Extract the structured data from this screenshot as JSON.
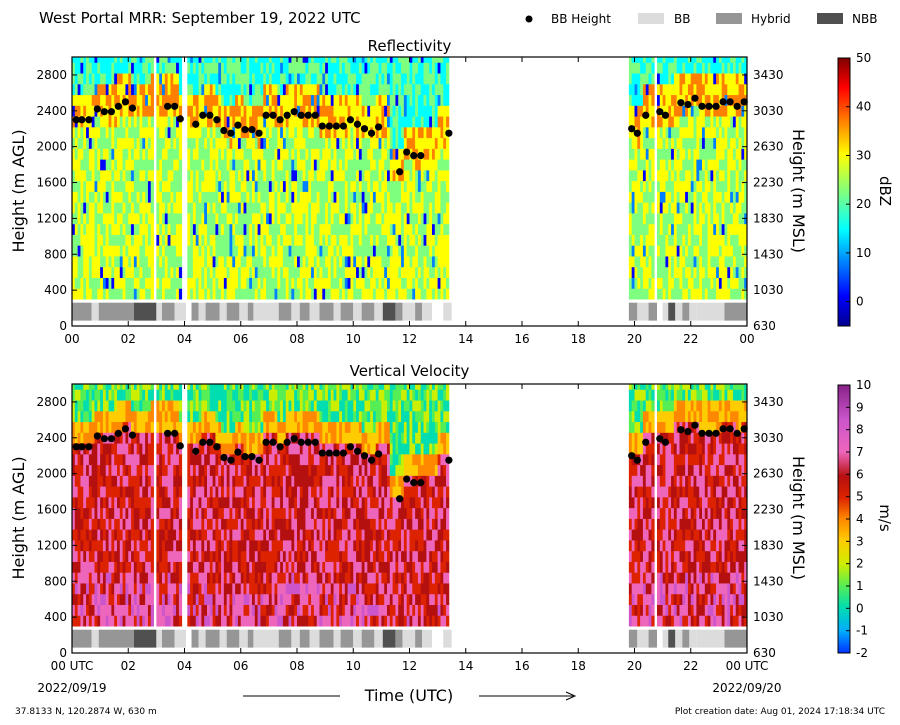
{
  "header": {
    "title": "West Portal MRR:  September 19, 2022 UTC",
    "legend": [
      {
        "label": "BB Height",
        "marker": "dot",
        "color": "#000000"
      },
      {
        "label": "BB",
        "marker": "box",
        "color": "#dcdcdc"
      },
      {
        "label": "Hybrid",
        "marker": "box",
        "color": "#969696"
      },
      {
        "label": "NBB",
        "marker": "box",
        "color": "#505050"
      }
    ]
  },
  "chart_data": [
    {
      "type": "heatmap",
      "title": "Reflectivity",
      "ylabel": "Height (m AGL)",
      "ylabel_right": "Height (m MSL)",
      "xlim": [
        0,
        24
      ],
      "ylim": [
        0,
        3000
      ],
      "x_ticks": [
        "00",
        "02",
        "04",
        "06",
        "08",
        "10",
        "12",
        "14",
        "16",
        "18",
        "20",
        "22",
        "00"
      ],
      "y_ticks": [
        0,
        400,
        800,
        1200,
        1600,
        2000,
        2400,
        2800
      ],
      "y_ticks_right": [
        "630",
        "1030",
        "1430",
        "1830",
        "2230",
        "2630",
        "3030",
        "3430"
      ],
      "colorbar": {
        "label": "dBZ",
        "min": -5,
        "max": 50,
        "ticks": [
          "0",
          "10",
          "20",
          "30",
          "40",
          "50"
        ],
        "colormap": "jet"
      }
    },
    {
      "type": "heatmap",
      "title": "Vertical Velocity",
      "ylabel": "Height (m AGL)",
      "ylabel_right": "Height (m MSL)",
      "xlim": [
        0,
        24
      ],
      "ylim": [
        0,
        3000
      ],
      "x_ticks": [
        "00 UTC",
        "02",
        "04",
        "06",
        "08",
        "10",
        "12",
        "14",
        "16",
        "18",
        "20",
        "22",
        "00 UTC"
      ],
      "x_date_left": "2022/09/19",
      "x_date_right": "2022/09/20",
      "xlabel": "Time (UTC)",
      "y_ticks": [
        0,
        400,
        800,
        1200,
        1600,
        2000,
        2400,
        2800
      ],
      "y_ticks_right": [
        "630",
        "1030",
        "1430",
        "1830",
        "2230",
        "2630",
        "3030",
        "3430"
      ],
      "colorbar": {
        "label": "m/s",
        "min": -2,
        "max": 10,
        "ticks": [
          "-2",
          "-1",
          "0",
          "1",
          "2",
          "3",
          "4",
          "5",
          "6",
          "7",
          "8",
          "9",
          "10"
        ],
        "colormap": "velocity"
      }
    }
  ],
  "bright_band": {
    "heights": [
      [
        0.15,
        2300
      ],
      [
        0.35,
        2300
      ],
      [
        0.6,
        2300
      ],
      [
        0.9,
        2420
      ],
      [
        1.15,
        2390
      ],
      [
        1.4,
        2390
      ],
      [
        1.65,
        2450
      ],
      [
        1.9,
        2500
      ],
      [
        2.15,
        2430
      ],
      [
        3.4,
        2450
      ],
      [
        3.65,
        2450
      ],
      [
        3.85,
        2310
      ],
      [
        4.4,
        2250
      ],
      [
        4.65,
        2350
      ],
      [
        4.9,
        2350
      ],
      [
        5.15,
        2300
      ],
      [
        5.4,
        2180
      ],
      [
        5.65,
        2150
      ],
      [
        5.9,
        2240
      ],
      [
        6.15,
        2190
      ],
      [
        6.4,
        2190
      ],
      [
        6.65,
        2150
      ],
      [
        6.9,
        2350
      ],
      [
        7.15,
        2350
      ],
      [
        7.4,
        2300
      ],
      [
        7.65,
        2350
      ],
      [
        7.9,
        2390
      ],
      [
        8.15,
        2350
      ],
      [
        8.4,
        2350
      ],
      [
        8.65,
        2350
      ],
      [
        8.9,
        2230
      ],
      [
        9.15,
        2230
      ],
      [
        9.4,
        2230
      ],
      [
        9.65,
        2230
      ],
      [
        9.9,
        2300
      ],
      [
        10.15,
        2250
      ],
      [
        10.4,
        2200
      ],
      [
        10.65,
        2150
      ],
      [
        10.9,
        2220
      ],
      [
        11.65,
        1720
      ],
      [
        11.9,
        1940
      ],
      [
        12.15,
        1900
      ],
      [
        12.4,
        1900
      ],
      [
        13.4,
        2150
      ],
      [
        19.9,
        2200
      ],
      [
        20.1,
        2150
      ],
      [
        20.4,
        2350
      ],
      [
        20.9,
        2390
      ],
      [
        21.1,
        2350
      ],
      [
        21.65,
        2490
      ],
      [
        21.9,
        2470
      ],
      [
        22.15,
        2540
      ],
      [
        22.4,
        2450
      ],
      [
        22.65,
        2450
      ],
      [
        22.9,
        2450
      ],
      [
        23.15,
        2500
      ],
      [
        23.4,
        2500
      ],
      [
        23.65,
        2450
      ],
      [
        23.9,
        2500
      ]
    ],
    "type_strip": [
      [
        0.0,
        0.7,
        "Hybrid"
      ],
      [
        0.7,
        0.95,
        "BB"
      ],
      [
        0.95,
        2.2,
        "Hybrid"
      ],
      [
        2.2,
        3.0,
        "NBB"
      ],
      [
        3.0,
        3.2,
        "BB"
      ],
      [
        3.2,
        3.65,
        "Hybrid"
      ],
      [
        3.65,
        4.05,
        "BB"
      ],
      [
        4.25,
        4.5,
        "Hybrid"
      ],
      [
        4.5,
        4.75,
        "BB"
      ],
      [
        4.75,
        5.25,
        "Hybrid"
      ],
      [
        5.25,
        5.5,
        "BB"
      ],
      [
        5.5,
        5.95,
        "Hybrid"
      ],
      [
        5.95,
        6.25,
        "BB"
      ],
      [
        6.25,
        6.45,
        "Hybrid"
      ],
      [
        6.45,
        7.35,
        "BB"
      ],
      [
        7.35,
        7.8,
        "Hybrid"
      ],
      [
        7.8,
        8.1,
        "BB"
      ],
      [
        8.1,
        8.45,
        "Hybrid"
      ],
      [
        8.45,
        8.8,
        "BB"
      ],
      [
        8.8,
        9.3,
        "Hybrid"
      ],
      [
        9.3,
        9.55,
        "BB"
      ],
      [
        9.55,
        10.0,
        "Hybrid"
      ],
      [
        10.0,
        10.3,
        "BB"
      ],
      [
        10.3,
        10.75,
        "Hybrid"
      ],
      [
        10.75,
        11.05,
        "BB"
      ],
      [
        11.05,
        11.5,
        "NBB"
      ],
      [
        11.5,
        11.75,
        "Hybrid"
      ],
      [
        11.75,
        12.2,
        "BB"
      ],
      [
        12.2,
        12.45,
        "Hybrid"
      ],
      [
        12.45,
        12.8,
        "BB"
      ],
      [
        13.2,
        13.5,
        "BB"
      ],
      [
        19.8,
        20.1,
        "Hybrid"
      ],
      [
        20.1,
        20.5,
        "BB"
      ],
      [
        20.5,
        20.8,
        "Hybrid"
      ],
      [
        21.0,
        21.2,
        "BB"
      ],
      [
        21.2,
        21.45,
        "NBB"
      ],
      [
        21.45,
        21.7,
        "BB"
      ],
      [
        21.7,
        21.95,
        "Hybrid"
      ],
      [
        21.95,
        22.2,
        "BB"
      ],
      [
        22.2,
        23.2,
        "BB"
      ],
      [
        23.2,
        24.0,
        "Hybrid"
      ]
    ]
  },
  "data_gaps": [
    [
      2.9,
      3.05
    ],
    [
      3.95,
      4.15
    ],
    [
      13.4,
      13.9
    ],
    [
      19.75,
      19.8
    ],
    [
      20.75,
      20.8
    ]
  ],
  "data_coverage": [
    [
      0.0,
      13.85
    ],
    [
      19.75,
      24.0
    ]
  ],
  "footer": {
    "location": "37.8133 N, 120.2874 W, 630 m",
    "creation": "Plot creation date: Aug 01, 2024 17:18:34 UTC"
  }
}
